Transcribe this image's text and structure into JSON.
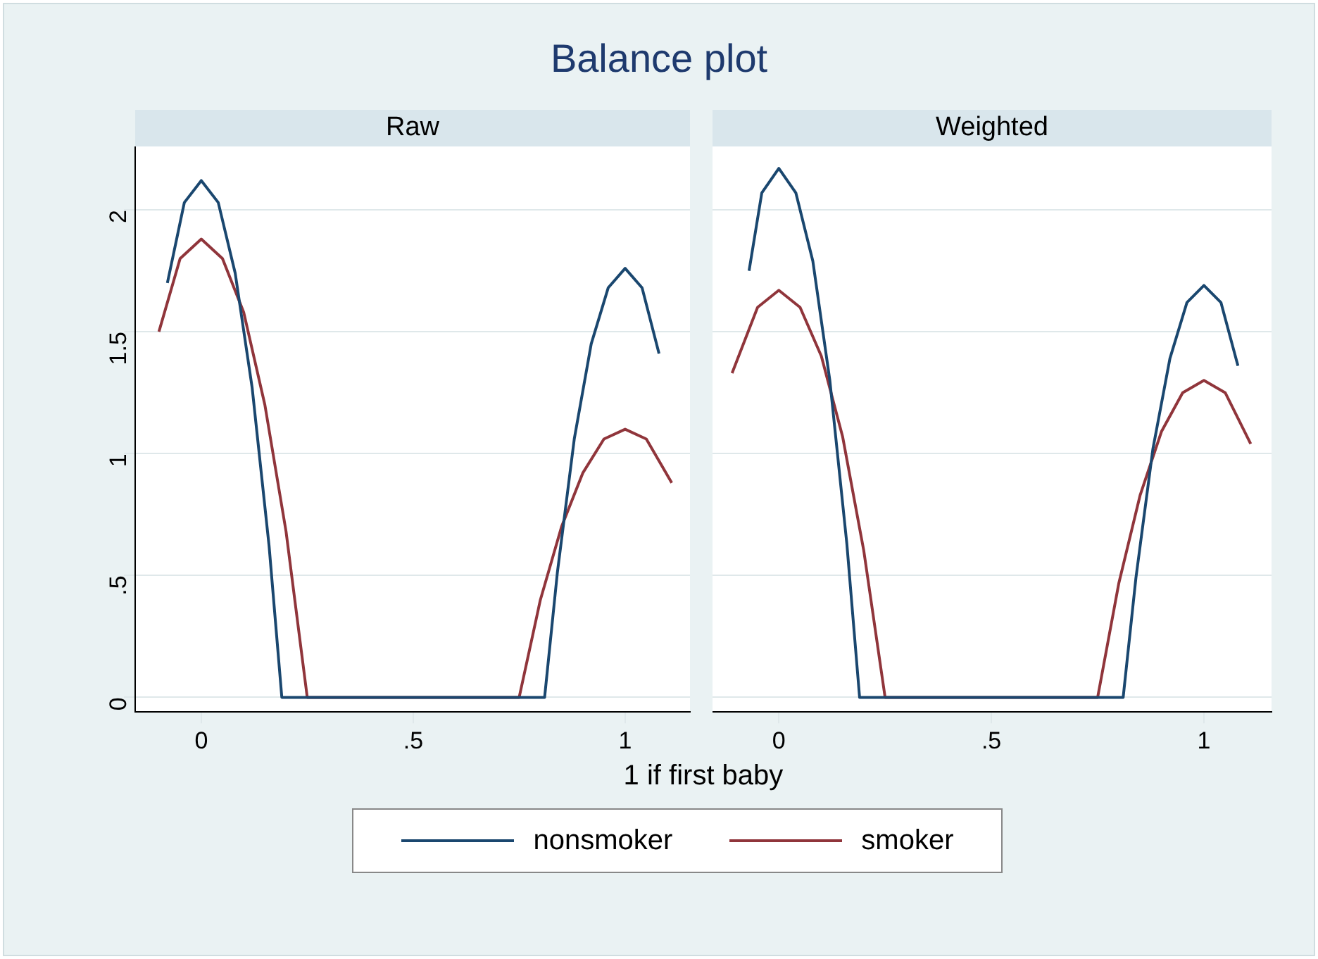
{
  "chart_data": [
    {
      "type": "line",
      "title": "Raw",
      "xlabel": "1 if first baby",
      "annotations": [
        "Balance plot"
      ],
      "xlim": [
        -0.156,
        1.153
      ],
      "ylim": [
        -0.06,
        2.26
      ],
      "xticks": [
        {
          "value": 0,
          "label": "0"
        },
        {
          "value": 0.5,
          "label": ".5"
        },
        {
          "value": 1,
          "label": "1"
        }
      ],
      "yticks": [
        {
          "value": 0,
          "label": "0"
        },
        {
          "value": 0.5,
          "label": ".5"
        },
        {
          "value": 1,
          "label": "1"
        },
        {
          "value": 1.5,
          "label": "1.5"
        },
        {
          "value": 2,
          "label": "2"
        }
      ],
      "grid": "y",
      "legend": "bottom",
      "marker": "none",
      "line_style": "solid",
      "series": [
        {
          "name": "nonsmoker",
          "color": "#1a476f",
          "x": [
            -0.08,
            -0.04,
            0,
            0.04,
            0.08,
            0.12,
            0.16,
            0.19,
            0.81,
            0.84,
            0.88,
            0.92,
            0.96,
            1,
            1.04,
            1.08
          ],
          "values": [
            1.7,
            2.03,
            2.12,
            2.03,
            1.74,
            1.27,
            0.62,
            0,
            0,
            0.51,
            1.06,
            1.45,
            1.68,
            1.76,
            1.68,
            1.41
          ]
        },
        {
          "name": "smoker",
          "color": "#90353b",
          "x": [
            -0.1,
            -0.05,
            0,
            0.05,
            0.1,
            0.15,
            0.2,
            0.25,
            0.75,
            0.8,
            0.85,
            0.9,
            0.95,
            1,
            1.05,
            1.11
          ],
          "values": [
            1.5,
            1.8,
            1.88,
            1.8,
            1.58,
            1.2,
            0.68,
            0,
            0,
            0.4,
            0.7,
            0.92,
            1.06,
            1.1,
            1.06,
            0.88
          ]
        }
      ]
    },
    {
      "type": "line",
      "title": "Weighted",
      "xlim": [
        -0.156,
        1.159
      ],
      "ylim": [
        -0.06,
        2.26
      ],
      "xticks": [
        0,
        {
          "value": 0.5,
          "label": ".5"
        },
        1
      ],
      "yticks": [
        0,
        0.5,
        1,
        1.5,
        2
      ],
      "tick_labels": "x",
      "grid": "y",
      "marker": "none",
      "line_style": "solid",
      "series": [
        {
          "color": "#1a476f",
          "x": [
            -0.07,
            -0.04,
            0,
            0.04,
            0.08,
            0.12,
            0.16,
            0.19,
            0.81,
            0.84,
            0.88,
            0.92,
            0.96,
            1,
            1.04,
            1.08
          ],
          "values": [
            1.75,
            2.07,
            2.17,
            2.07,
            1.79,
            1.3,
            0.63,
            0,
            0,
            0.49,
            1.02,
            1.39,
            1.62,
            1.69,
            1.62,
            1.36
          ]
        },
        {
          "color": "#90353b",
          "x": [
            -0.11,
            -0.05,
            0,
            0.05,
            0.1,
            0.15,
            0.2,
            0.25,
            0.75,
            0.8,
            0.85,
            0.9,
            0.95,
            1,
            1.05,
            1.11
          ],
          "values": [
            1.33,
            1.6,
            1.67,
            1.6,
            1.4,
            1.07,
            0.6,
            0,
            0,
            0.47,
            0.83,
            1.09,
            1.25,
            1.3,
            1.25,
            1.04
          ]
        }
      ]
    }
  ]
}
